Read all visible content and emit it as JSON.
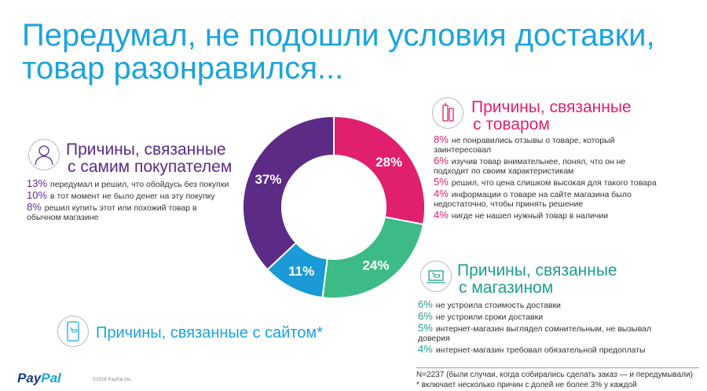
{
  "title": {
    "line1": "Передумал, не подошли условия доставки,",
    "line2": "товар разонравился..."
  },
  "groups": {
    "buyer": {
      "heading_line1": "Причины, связанные",
      "heading_line2": "с самим покупателем",
      "color": "#5b2b86",
      "icon": "person-icon",
      "items": [
        {
          "pct": "13%",
          "text": "передумал и решил, что обойдусь без покупки"
        },
        {
          "pct": "10%",
          "text": "в тот момент не было денег на эту покупку"
        },
        {
          "pct": "8%",
          "text": "решил купить этот или похожий товар в обычном магазине"
        }
      ]
    },
    "product": {
      "heading_line1": "Причины, связанные",
      "heading_line2": "с товаром",
      "color": "#e01f6e",
      "icon": "bottle-icon",
      "items": [
        {
          "pct": "8%",
          "text": "не понравились отзывы о товаре, который заинтересовал"
        },
        {
          "pct": "6%",
          "text": "изучив товар внимательнее, понял, что он не подходит по своим характеристикам"
        },
        {
          "pct": "5%",
          "text": "решил, что цена слишком высокая для такого товара"
        },
        {
          "pct": "4%",
          "text": "информации о товаре на сайте магазина было недостаточно, чтобы принять решение"
        },
        {
          "pct": "4%",
          "text": "нигде не нашел нужный товар в наличии"
        }
      ]
    },
    "store": {
      "heading_line1": "Причины, связанные",
      "heading_line2": "с магазином",
      "color": "#1e9e8c",
      "icon": "laptop-cart-icon",
      "items": [
        {
          "pct": "6%",
          "text": "не устроила стоимость доставки"
        },
        {
          "pct": "6%",
          "text": "не устроили сроки доставки"
        },
        {
          "pct": "5%",
          "text": "интернет-магазин выглядел сомнительным, не вызывал доверия"
        },
        {
          "pct": "4%",
          "text": "интернет-магазин требовал обязательной предоплаты"
        }
      ]
    },
    "site": {
      "heading": "Причины, связанные с сайтом*",
      "color": "#1aa3e0",
      "icon": "phone-cart-icon"
    }
  },
  "chart_data": {
    "type": "pie",
    "donut": true,
    "categories": [
      "Причины, связанные с товаром",
      "Причины, связанные с магазином",
      "Причины, связанные с сайтом*",
      "Причины, связанные с самим покупателем"
    ],
    "values": [
      28,
      24,
      11,
      37
    ],
    "labels": [
      "28%",
      "24%",
      "11%",
      "37%"
    ],
    "colors": [
      "#e01f6e",
      "#3dbb86",
      "#1a9ad6",
      "#5b2b86"
    ]
  },
  "footer": {
    "note1": "N=2237 (были случаи, когда собирались сделать заказ — и передумывали)",
    "note2": "* включает несколько причин с долей не более 3% у каждой",
    "brand_part1": "Pay",
    "brand_part2": "Pal",
    "copyright": "©2018 PayPal Inc."
  }
}
